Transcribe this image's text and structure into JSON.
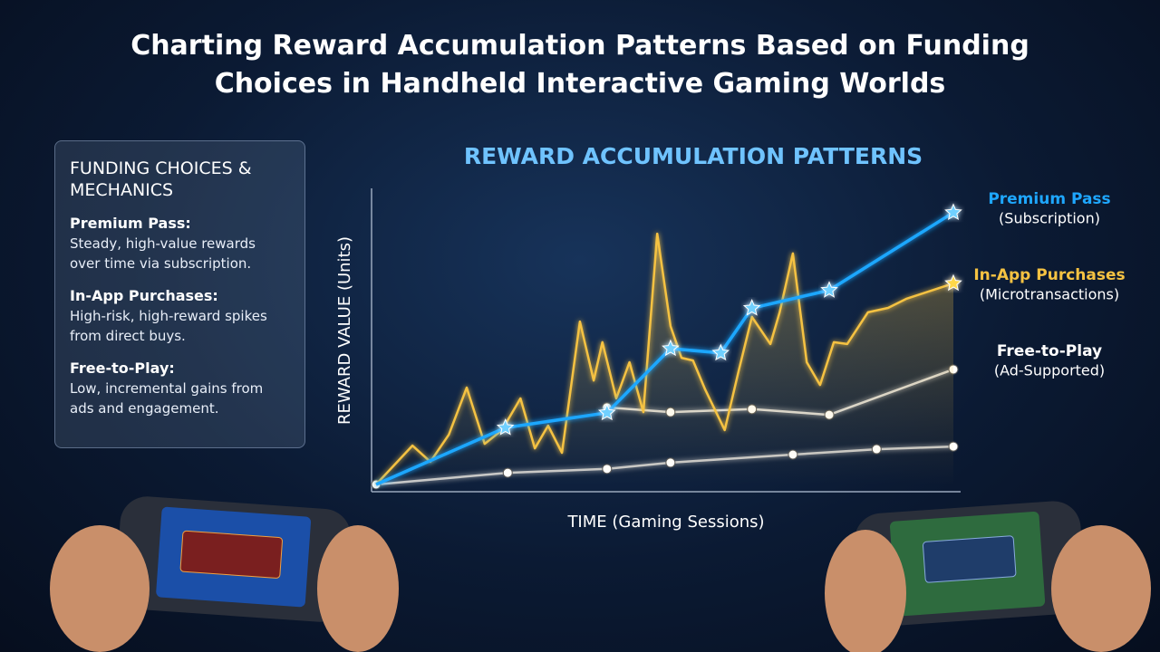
{
  "title": "Charting Reward Accumulation Patterns Based on Funding Choices in Handheld Interactive Gaming Worlds",
  "panel": {
    "heading": "FUNDING CHOICES & MECHANICS",
    "items": [
      {
        "title": "Premium Pass:",
        "text": "Steady, high-value rewards over time via subscription."
      },
      {
        "title": "In-App Purchases:",
        "text": "High-risk, high-reward spikes from direct buys."
      },
      {
        "title": "Free-to-Play:",
        "text": "Low, incremental gains from ads and engagement."
      }
    ]
  },
  "chart_data": {
    "type": "line",
    "title": "REWARD ACCUMULATION PATTERNS",
    "x_label": "TIME (Gaming Sessions)",
    "y_label": "REWARD VALUE (Units)",
    "xlim": [
      0,
      100
    ],
    "ylim": [
      0,
      100
    ],
    "series": [
      {
        "name": "Premium Pass",
        "subtitle": "(Subscription)",
        "color": "#1ea7ff",
        "x": [
          0,
          22.4,
          40,
          51,
          59.7,
          65.1,
          78.5,
          100
        ],
        "values": [
          0,
          19,
          24,
          45.5,
          44,
          59,
          65,
          91
        ]
      },
      {
        "name": "In-App Purchases",
        "subtitle": "(Microtransactions)",
        "color": "#f5c242",
        "x": [
          0,
          6.3,
          9.4,
          12.6,
          15.7,
          18.8,
          21.8,
          25.0,
          27.5,
          29.8,
          32.2,
          35.3,
          37.7,
          39.2,
          41.6,
          43.9,
          46.3,
          48.7,
          51.0,
          52.9,
          54.9,
          57.0,
          60.4,
          62.8,
          65.1,
          68.3,
          69.9,
          72.2,
          74.6,
          76.9,
          79.3,
          81.6,
          85.2,
          88.7,
          91.8,
          100
        ],
        "values": [
          0,
          13,
          7.6,
          16.7,
          32.4,
          13.6,
          18.2,
          28.8,
          12.1,
          19.7,
          10.6,
          54.5,
          34.8,
          47.6,
          28.8,
          40.9,
          24.2,
          83.9,
          53.0,
          42.4,
          41.5,
          31.8,
          18.2,
          37.9,
          56.1,
          47.0,
          57.6,
          77.3,
          40.9,
          33.3,
          47.6,
          47.0,
          57.6,
          59.1,
          62.1,
          67.3
        ]
      },
      {
        "name": "Free-to-Play",
        "subtitle": "(Ad-Supported)",
        "color": "#d8d8d8",
        "x": [
          40,
          51,
          65.1,
          78.5,
          100
        ],
        "values": [
          25.8,
          24.2,
          25.2,
          23.3,
          38.5
        ]
      },
      {
        "color": "#c8c8c8",
        "x": [
          0,
          22.8,
          40,
          51,
          72.2,
          86.7,
          100
        ],
        "values": [
          0,
          3.9,
          5.2,
          7.3,
          10,
          11.8,
          12.7
        ]
      }
    ]
  }
}
